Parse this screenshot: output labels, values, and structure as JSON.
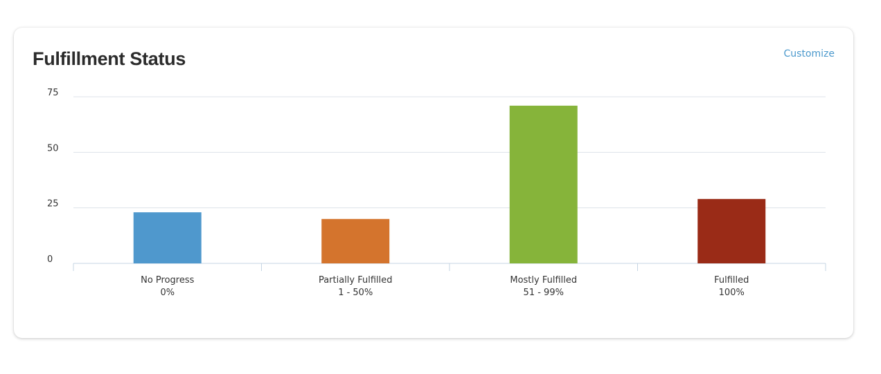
{
  "widget": {
    "title": "Fulfillment Status",
    "customize_label": "Customize"
  },
  "chart_data": {
    "type": "bar",
    "categories": [
      {
        "label": "No Progress",
        "sublabel": "0%"
      },
      {
        "label": "Partially Fulfilled",
        "sublabel": "1 - 50%"
      },
      {
        "label": "Mostly Fulfilled",
        "sublabel": "51 - 99%"
      },
      {
        "label": "Fulfilled",
        "sublabel": "100%"
      }
    ],
    "values": [
      23,
      20,
      71,
      29
    ],
    "colors": [
      "#4f98cd",
      "#d4742d",
      "#86b43a",
      "#9a2b17"
    ],
    "ylim": [
      0,
      75
    ],
    "yticks": [
      0,
      25,
      50,
      75
    ],
    "grid": true,
    "title": "",
    "xlabel": "",
    "ylabel": ""
  }
}
